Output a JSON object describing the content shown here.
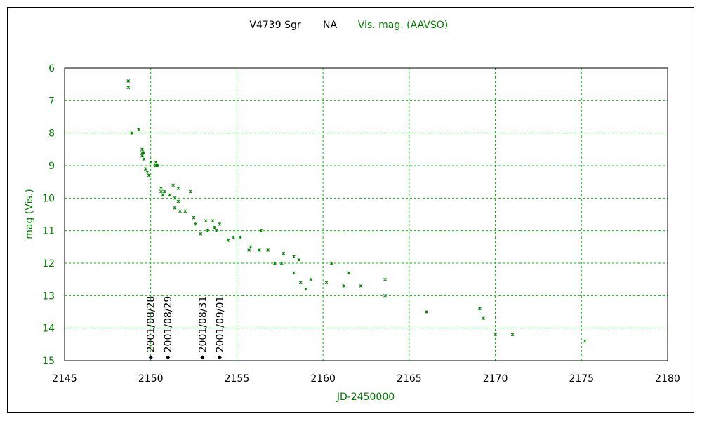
{
  "chart_data": {
    "type": "scatter",
    "title": "V4739 Sgr",
    "title_suffix": "NA",
    "series_label": "Vis. mag. (AAVSO)",
    "xlabel": "JD-2450000",
    "ylabel": "mag (Vis.)",
    "xlim": [
      2145,
      2180
    ],
    "ylim": [
      15,
      6
    ],
    "y_inverted": true,
    "grid": true,
    "xticks": [
      "2145",
      "2150",
      "2155",
      "2160",
      "2165",
      "2170",
      "2175",
      "2180"
    ],
    "xtick_values": [
      2145,
      2150,
      2155,
      2160,
      2165,
      2170,
      2175,
      2180
    ],
    "yticks": [
      "6",
      "7",
      "8",
      "9",
      "10",
      "11",
      "12",
      "13",
      "14",
      "15"
    ],
    "ytick_values": [
      6,
      7,
      8,
      9,
      10,
      11,
      12,
      13,
      14,
      15
    ],
    "colors": {
      "series": "#008000",
      "grid": "#00c000",
      "label": "#008000",
      "marker": "#000000"
    },
    "series": [
      {
        "name": "Vis. mag. (AAVSO)",
        "points": [
          [
            2148.7,
            6.4
          ],
          [
            2148.7,
            6.6
          ],
          [
            2148.9,
            8.0
          ],
          [
            2149.3,
            7.9
          ],
          [
            2149.5,
            8.5
          ],
          [
            2149.5,
            8.6
          ],
          [
            2149.5,
            8.7
          ],
          [
            2149.6,
            8.6
          ],
          [
            2149.6,
            8.8
          ],
          [
            2149.7,
            9.1
          ],
          [
            2149.8,
            9.2
          ],
          [
            2149.9,
            9.3
          ],
          [
            2150.0,
            8.9
          ],
          [
            2150.3,
            8.9
          ],
          [
            2150.3,
            9.0
          ],
          [
            2150.4,
            9.0
          ],
          [
            2150.6,
            9.7
          ],
          [
            2150.6,
            9.8
          ],
          [
            2150.7,
            9.9
          ],
          [
            2150.8,
            9.8
          ],
          [
            2151.1,
            9.9
          ],
          [
            2151.3,
            9.6
          ],
          [
            2151.4,
            10.0
          ],
          [
            2151.4,
            10.3
          ],
          [
            2151.6,
            9.7
          ],
          [
            2151.6,
            10.1
          ],
          [
            2151.7,
            10.4
          ],
          [
            2152.0,
            10.4
          ],
          [
            2152.3,
            9.8
          ],
          [
            2152.5,
            10.6
          ],
          [
            2152.6,
            10.8
          ],
          [
            2152.9,
            11.1
          ],
          [
            2153.2,
            10.7
          ],
          [
            2153.3,
            11.0
          ],
          [
            2153.6,
            10.7
          ],
          [
            2153.7,
            10.9
          ],
          [
            2153.8,
            11.0
          ],
          [
            2154.0,
            10.8
          ],
          [
            2154.5,
            11.3
          ],
          [
            2154.8,
            11.2
          ],
          [
            2155.2,
            11.2
          ],
          [
            2155.7,
            11.6
          ],
          [
            2155.8,
            11.5
          ],
          [
            2156.3,
            11.6
          ],
          [
            2156.4,
            11.0
          ],
          [
            2156.8,
            11.6
          ],
          [
            2157.2,
            12.0
          ],
          [
            2157.6,
            12.0
          ],
          [
            2157.7,
            11.7
          ],
          [
            2158.3,
            12.3
          ],
          [
            2158.3,
            11.8
          ],
          [
            2158.6,
            11.9
          ],
          [
            2158.7,
            12.6
          ],
          [
            2159.0,
            12.8
          ],
          [
            2159.3,
            12.5
          ],
          [
            2160.2,
            12.6
          ],
          [
            2160.5,
            12.0
          ],
          [
            2161.2,
            12.7
          ],
          [
            2161.5,
            12.3
          ],
          [
            2162.2,
            12.7
          ],
          [
            2163.6,
            12.5
          ],
          [
            2163.6,
            13.0
          ],
          [
            2166.0,
            13.5
          ],
          [
            2169.1,
            13.4
          ],
          [
            2169.3,
            13.7
          ],
          [
            2170.0,
            14.2
          ],
          [
            2171.0,
            14.2
          ],
          [
            2175.2,
            14.4
          ]
        ]
      }
    ],
    "annotations": [
      {
        "x": 2150.0,
        "y": 14.9,
        "label": "2001/08/28"
      },
      {
        "x": 2151.0,
        "y": 14.9,
        "label": "2001/08/29"
      },
      {
        "x": 2153.0,
        "y": 14.9,
        "label": "2001/08/31"
      },
      {
        "x": 2154.0,
        "y": 14.9,
        "label": "2001/09/01"
      }
    ]
  }
}
